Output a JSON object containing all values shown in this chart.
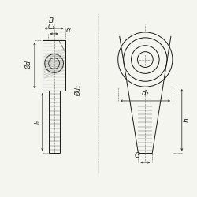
{
  "bg_color": "#f5f5f0",
  "line_color": "#1a1a1a",
  "dim_color": "#1a1a1a",
  "hatch_color": "#1a1a1a",
  "labels": {
    "B": "B",
    "C1": "C₁",
    "alpha": "α",
    "phi_d": "Ød",
    "phi_d1": "Ød₁",
    "d2": "d₂",
    "G": "G",
    "h": "h",
    "l1": "l₁"
  }
}
